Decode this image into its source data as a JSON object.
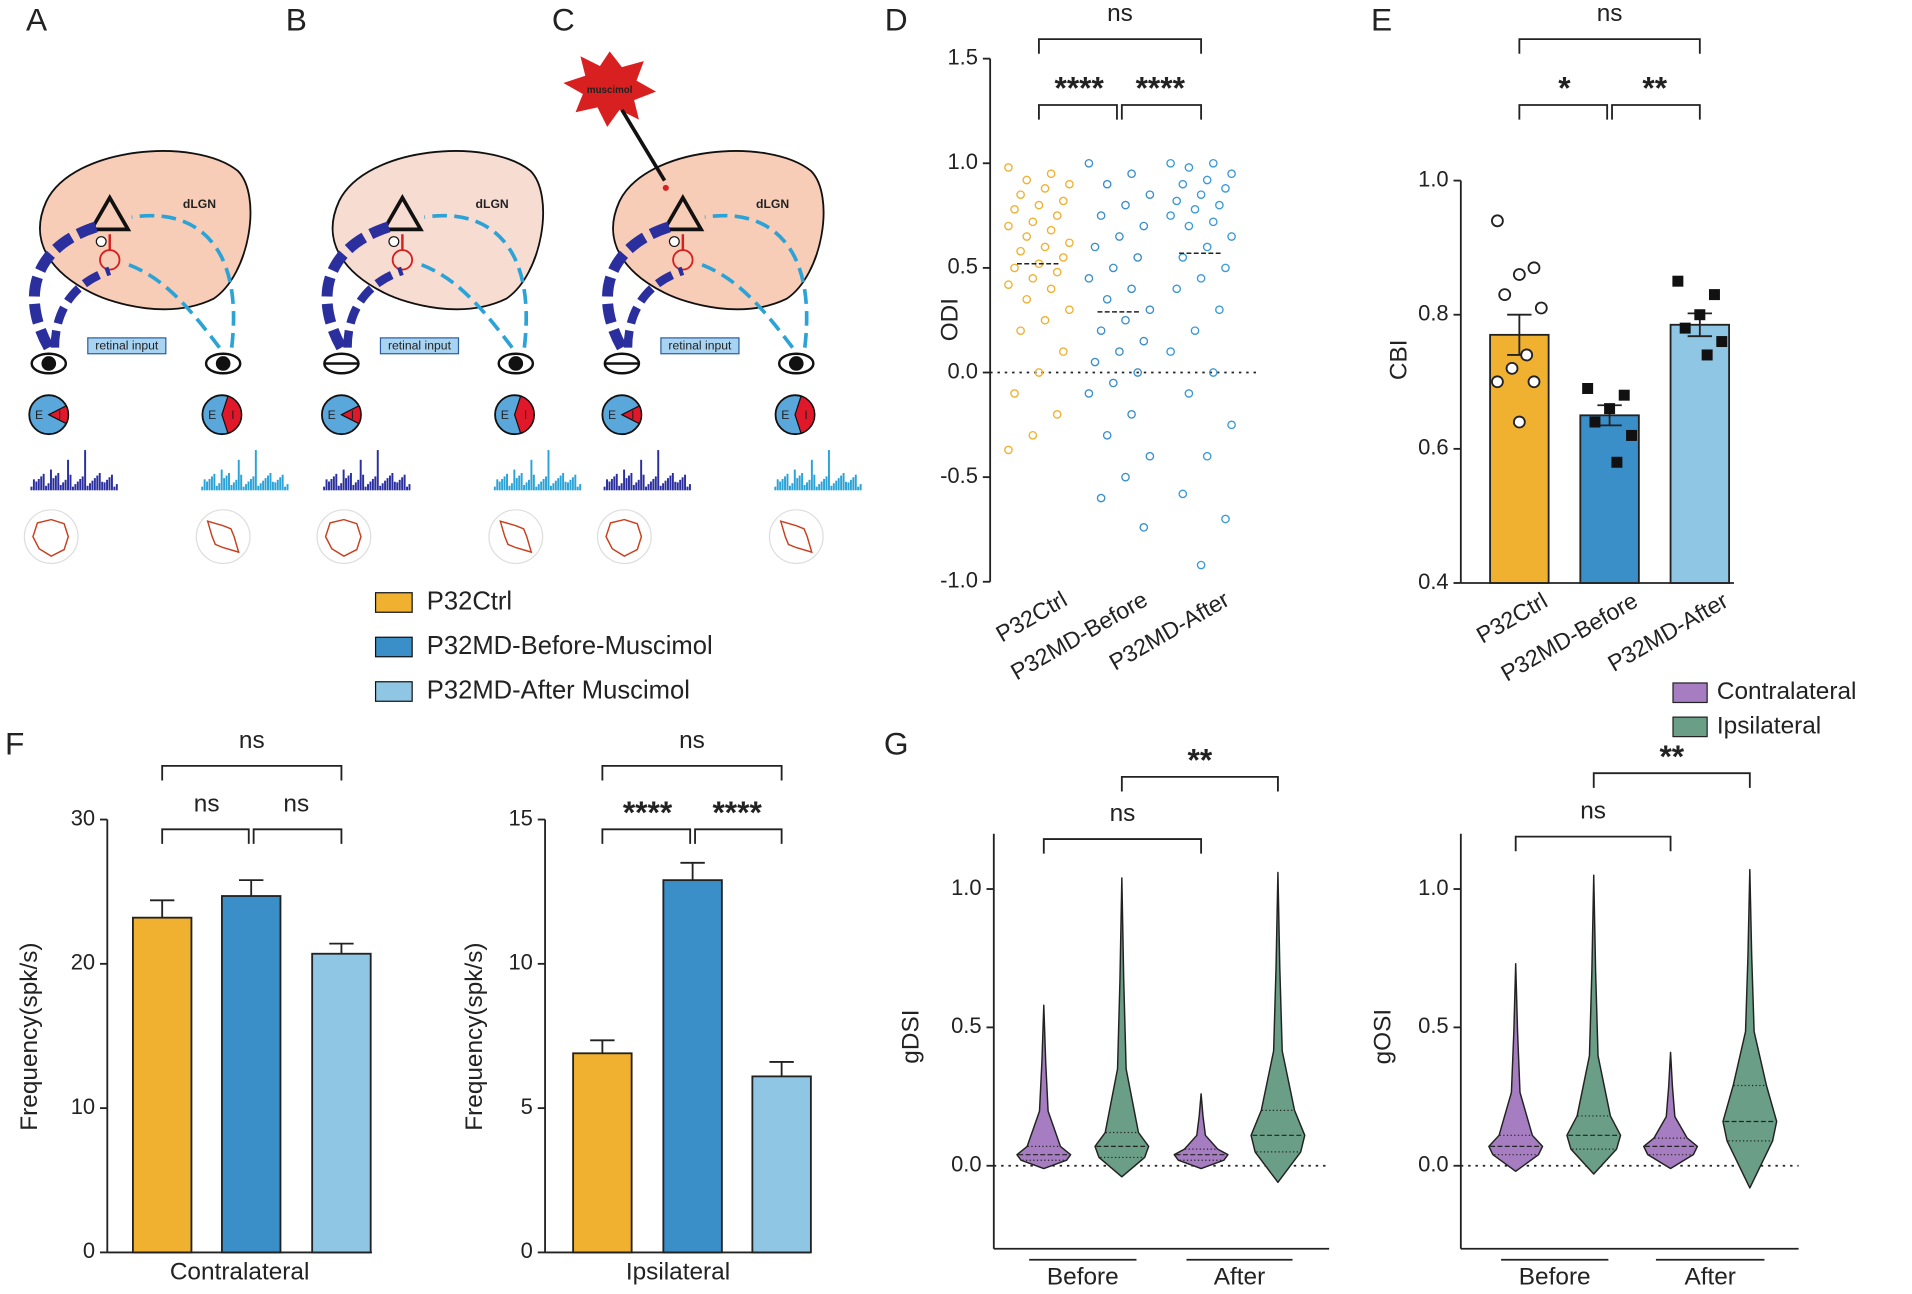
{
  "panels": [
    "A",
    "B",
    "C",
    "D",
    "E",
    "F",
    "G"
  ],
  "diagram": {
    "region": "dLGN",
    "input": "retinal input",
    "drug": "muscimol",
    "excitation": "E",
    "inhibition": "I"
  },
  "legend": [
    {
      "name": "P32Ctrl",
      "color": "#f0b030"
    },
    {
      "name": "P32MD-Before-Muscimol",
      "color": "#3a8fc8"
    },
    {
      "name": "P32MD-After Muscimol",
      "color": "#8ec6e3"
    }
  ],
  "chart_data": [
    {
      "type": "strip",
      "ylabel": "ODI",
      "categories": [
        "P32Ctrl",
        "P32MD-Before",
        "P32MD-After"
      ],
      "colors": [
        "#f0b030",
        "#3a8fc8",
        "#3a9ad6"
      ],
      "means": [
        0.52,
        0.29,
        0.57
      ],
      "points": [
        [
          0.98,
          0.95,
          0.92,
          0.9,
          0.88,
          0.85,
          0.82,
          0.8,
          0.78,
          0.75,
          0.72,
          0.7,
          0.68,
          0.65,
          0.62,
          0.6,
          0.58,
          0.55,
          0.52,
          0.5,
          0.48,
          0.45,
          0.42,
          0.4,
          0.35,
          0.3,
          0.25,
          0.2,
          0.1,
          0,
          -0.1,
          -0.2,
          -0.3,
          -0.37
        ],
        [
          1,
          0.95,
          0.9,
          0.85,
          0.8,
          0.75,
          0.7,
          0.65,
          0.6,
          0.55,
          0.5,
          0.45,
          0.4,
          0.35,
          0.3,
          0.25,
          0.2,
          0.15,
          0.1,
          0.05,
          0,
          -0.05,
          -0.1,
          -0.2,
          -0.3,
          -0.4,
          -0.5,
          -0.6,
          -0.74
        ],
        [
          1,
          1,
          0.98,
          0.95,
          0.92,
          0.9,
          0.88,
          0.85,
          0.82,
          0.8,
          0.78,
          0.75,
          0.72,
          0.7,
          0.65,
          0.6,
          0.55,
          0.5,
          0.45,
          0.4,
          0.3,
          0.2,
          0.1,
          0,
          -0.1,
          -0.25,
          -0.4,
          -0.58,
          -0.7,
          -0.92
        ]
      ],
      "ylim": [
        -1,
        1.5
      ],
      "yticks": [
        {
          "value": -1,
          "label": "-1.0"
        },
        -0.5,
        {
          "value": 0,
          "label": "0.0"
        },
        0.5,
        {
          "value": 1,
          "label": "1.0"
        },
        1.5
      ],
      "annotations": [
        {
          "text": "ns",
          "from": 0,
          "to": 2
        },
        {
          "text": "****",
          "from": 0,
          "to": 1
        },
        {
          "text": "****",
          "from": 1,
          "to": 2
        }
      ]
    },
    {
      "type": "bar",
      "ylabel": "CBI",
      "categories": [
        "P32Ctrl",
        "P32MD-Before",
        "P32MD-After"
      ],
      "colors": [
        "#f0b030",
        "#3a8fc8",
        "#8ec6e3"
      ],
      "values": [
        0.77,
        0.65,
        0.785
      ],
      "errors": [
        0.03,
        0.015,
        0.017
      ],
      "markers": [
        "circle",
        "square",
        "square"
      ],
      "points": [
        [
          0.94,
          0.87,
          0.86,
          0.83,
          0.81,
          0.74,
          0.72,
          0.7,
          0.7,
          0.64
        ],
        [
          0.69,
          0.68,
          0.66,
          0.64,
          0.62,
          0.58
        ],
        [
          0.85,
          0.83,
          0.8,
          0.78,
          0.76,
          0.74
        ]
      ],
      "ylim": [
        0.4,
        1
      ],
      "yticks": [
        0.4,
        0.6,
        0.8,
        {
          "value": 1,
          "label": "1.0"
        }
      ],
      "annotations": [
        {
          "text": "ns",
          "from": 0,
          "to": 2
        },
        {
          "text": "*",
          "from": 0,
          "to": 1
        },
        {
          "text": "**",
          "from": 1,
          "to": 2
        }
      ]
    },
    {
      "type": "bar",
      "ylabel": "Frequency(spk/s)",
      "xlabel": "Contralateral",
      "colors": [
        "#f0b030",
        "#3a8fc8",
        "#8ec6e3"
      ],
      "values": [
        23.2,
        24.7,
        20.7
      ],
      "errors": [
        1.2,
        1.1,
        0.7
      ],
      "ylim": [
        0,
        30
      ],
      "yticks": [
        0,
        10,
        20,
        30
      ],
      "annotations": [
        {
          "text": "ns",
          "from": 0,
          "to": 2
        },
        {
          "text": "ns",
          "from": 0,
          "to": 1
        },
        {
          "text": "ns",
          "from": 1,
          "to": 2
        }
      ]
    },
    {
      "type": "bar",
      "ylabel": "Frequency(spk/s)",
      "xlabel": "Ipsilateral",
      "colors": [
        "#f0b030",
        "#3a8fc8",
        "#8ec6e3"
      ],
      "values": [
        6.9,
        12.9,
        6.1
      ],
      "errors": [
        0.45,
        0.6,
        0.5
      ],
      "ylim": [
        0,
        15
      ],
      "yticks": [
        0,
        5,
        10,
        15
      ],
      "annotations": [
        {
          "text": "ns",
          "from": 0,
          "to": 2
        },
        {
          "text": "****",
          "from": 0,
          "to": 1
        },
        {
          "text": "****",
          "from": 1,
          "to": 2
        }
      ]
    },
    {
      "type": "violin",
      "ylabel": "gDSI",
      "groups": [
        "Before",
        "After"
      ],
      "series": [
        {
          "name": "Contralateral",
          "color": "#a57dc0",
          "stats": [
            [
              -0.01,
              0.02,
              0.04,
              0.07,
              0.58
            ],
            [
              -0.01,
              0.02,
              0.04,
              0.06,
              0.26
            ]
          ]
        },
        {
          "name": "Ipsilateral",
          "color": "#6a9e86",
          "stats": [
            [
              -0.04,
              0.03,
              0.07,
              0.12,
              1.04
            ],
            [
              -0.06,
              0.05,
              0.11,
              0.2,
              1.06
            ]
          ]
        }
      ],
      "ylim": [
        -0.3,
        1.2
      ],
      "yticks": [
        {
          "value": 0,
          "label": "0.0"
        },
        0.5,
        {
          "value": 1,
          "label": "1.0"
        }
      ],
      "annotations": [
        {
          "text": "ns",
          "from": 0,
          "to": 2
        },
        {
          "text": "**",
          "from": 1,
          "to": 3
        }
      ]
    },
    {
      "type": "violin",
      "ylabel": "gOSI",
      "groups": [
        "Before",
        "After"
      ],
      "series": [
        {
          "color": "#a57dc0",
          "stats": [
            [
              -0.02,
              0.04,
              0.07,
              0.11,
              0.73
            ],
            [
              -0.01,
              0.04,
              0.07,
              0.1,
              0.41
            ]
          ]
        },
        {
          "color": "#6a9e86",
          "stats": [
            [
              -0.03,
              0.06,
              0.11,
              0.18,
              1.05
            ],
            [
              -0.08,
              0.09,
              0.16,
              0.29,
              1.07
            ]
          ]
        }
      ],
      "ylim": [
        -0.3,
        1.2
      ],
      "yticks": [
        {
          "value": 0,
          "label": "0.0"
        },
        0.5,
        {
          "value": 1,
          "label": "1.0"
        }
      ],
      "annotations": [
        {
          "text": "ns",
          "from": 0,
          "to": 2
        },
        {
          "text": "**",
          "from": 1,
          "to": 3
        }
      ]
    }
  ]
}
